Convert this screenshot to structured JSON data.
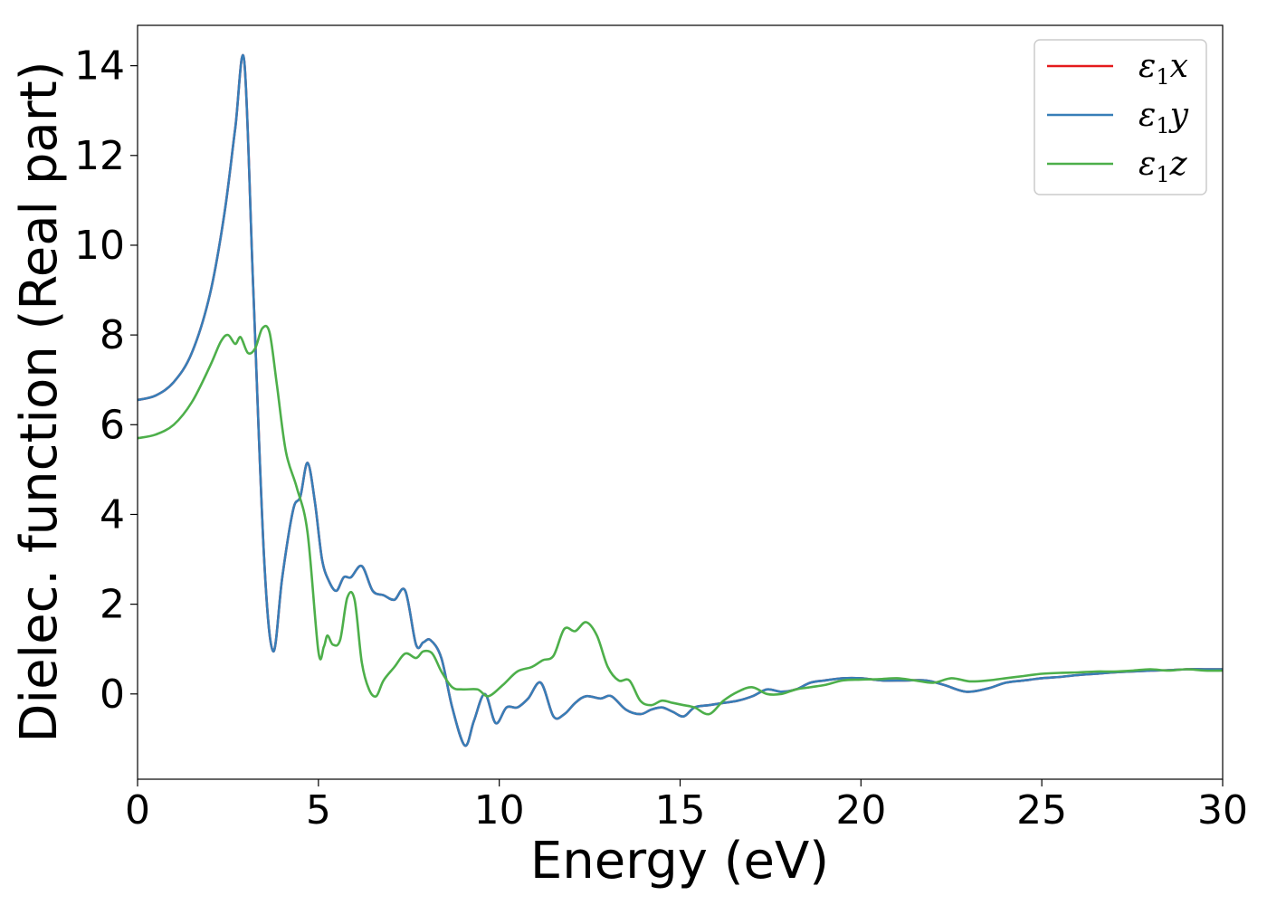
{
  "chart_data": {
    "type": "line",
    "title": "",
    "xlabel": "Energy (eV)",
    "ylabel": "Dielec. function (Real part)",
    "xlim": [
      0,
      30
    ],
    "ylim": [
      -1.9,
      14.9
    ],
    "xticks": [
      "0",
      "5",
      "10",
      "15",
      "20",
      "25",
      "30"
    ],
    "yticks": [
      "0",
      "2",
      "4",
      "6",
      "8",
      "10",
      "12",
      "14"
    ],
    "grid": false,
    "legend_position": "top-right",
    "series": [
      {
        "name": "x",
        "color": "#e41a1c",
        "x": [
          0,
          0.5,
          1,
          1.5,
          2,
          2.4,
          2.7,
          2.95,
          3.2,
          3.5,
          3.75,
          4,
          4.3,
          4.5,
          4.7,
          4.9,
          5.1,
          5.3,
          5.5,
          5.7,
          5.9,
          6.2,
          6.5,
          6.8,
          7.1,
          7.4,
          7.7,
          7.9,
          8.1,
          8.4,
          8.7,
          9.05,
          9.3,
          9.6,
          9.9,
          10.2,
          10.5,
          10.8,
          11.15,
          11.5,
          11.8,
          12.1,
          12.4,
          12.8,
          13.1,
          13.5,
          13.9,
          14.2,
          14.5,
          14.8,
          15.1,
          15.4,
          15.8,
          16.2,
          16.6,
          17,
          17.4,
          17.8,
          18.2,
          18.6,
          19,
          19.5,
          20,
          20.6,
          21.2,
          21.8,
          22.3,
          22.9,
          23.5,
          24,
          24.5,
          25,
          25.5,
          26,
          26.5,
          27,
          27.5,
          28,
          28.5,
          29,
          29.5,
          30
        ],
        "values": [
          6.55,
          6.65,
          6.95,
          7.6,
          8.9,
          10.7,
          12.6,
          14.1,
          9.0,
          3.0,
          0.95,
          2.6,
          4.1,
          4.4,
          5.15,
          4.3,
          3.0,
          2.5,
          2.3,
          2.6,
          2.6,
          2.85,
          2.3,
          2.2,
          2.1,
          2.3,
          1.1,
          1.15,
          1.2,
          0.8,
          -0.3,
          -1.15,
          -0.6,
          0.0,
          -0.65,
          -0.3,
          -0.3,
          -0.1,
          0.25,
          -0.5,
          -0.45,
          -0.2,
          -0.05,
          -0.1,
          -0.05,
          -0.35,
          -0.45,
          -0.35,
          -0.3,
          -0.4,
          -0.5,
          -0.3,
          -0.25,
          -0.2,
          -0.15,
          -0.05,
          0.1,
          0.05,
          0.1,
          0.25,
          0.3,
          0.35,
          0.35,
          0.3,
          0.3,
          0.3,
          0.2,
          0.05,
          0.12,
          0.25,
          0.3,
          0.35,
          0.38,
          0.42,
          0.45,
          0.48,
          0.5,
          0.52,
          0.53,
          0.55,
          0.55,
          0.55
        ]
      },
      {
        "name": "y",
        "color": "#377eb8",
        "x": [
          0,
          0.5,
          1,
          1.5,
          2,
          2.4,
          2.7,
          2.95,
          3.2,
          3.5,
          3.75,
          4,
          4.3,
          4.5,
          4.7,
          4.9,
          5.1,
          5.3,
          5.5,
          5.7,
          5.9,
          6.2,
          6.5,
          6.8,
          7.1,
          7.4,
          7.7,
          7.9,
          8.1,
          8.4,
          8.7,
          9.05,
          9.3,
          9.6,
          9.9,
          10.2,
          10.5,
          10.8,
          11.15,
          11.5,
          11.8,
          12.1,
          12.4,
          12.8,
          13.1,
          13.5,
          13.9,
          14.2,
          14.5,
          14.8,
          15.1,
          15.4,
          15.8,
          16.2,
          16.6,
          17,
          17.4,
          17.8,
          18.2,
          18.6,
          19,
          19.5,
          20,
          20.6,
          21.2,
          21.8,
          22.3,
          22.9,
          23.5,
          24,
          24.5,
          25,
          25.5,
          26,
          26.5,
          27,
          27.5,
          28,
          28.5,
          29,
          29.5,
          30
        ],
        "values": [
          6.55,
          6.65,
          6.95,
          7.6,
          8.9,
          10.7,
          12.6,
          14.1,
          9.0,
          3.0,
          0.95,
          2.6,
          4.1,
          4.4,
          5.15,
          4.3,
          3.0,
          2.5,
          2.3,
          2.6,
          2.6,
          2.85,
          2.3,
          2.2,
          2.1,
          2.3,
          1.1,
          1.15,
          1.2,
          0.8,
          -0.3,
          -1.15,
          -0.6,
          0.0,
          -0.65,
          -0.3,
          -0.3,
          -0.1,
          0.25,
          -0.5,
          -0.45,
          -0.2,
          -0.05,
          -0.1,
          -0.05,
          -0.35,
          -0.45,
          -0.35,
          -0.3,
          -0.4,
          -0.5,
          -0.3,
          -0.25,
          -0.2,
          -0.15,
          -0.05,
          0.1,
          0.05,
          0.1,
          0.25,
          0.3,
          0.35,
          0.35,
          0.3,
          0.3,
          0.3,
          0.2,
          0.05,
          0.12,
          0.25,
          0.3,
          0.35,
          0.38,
          0.42,
          0.45,
          0.48,
          0.5,
          0.52,
          0.53,
          0.55,
          0.55,
          0.55
        ]
      },
      {
        "name": "z",
        "color": "#4daf4a",
        "x": [
          0,
          0.5,
          1,
          1.5,
          2,
          2.3,
          2.5,
          2.7,
          2.85,
          3.05,
          3.25,
          3.45,
          3.65,
          3.85,
          4.1,
          4.4,
          4.7,
          5.0,
          5.15,
          5.25,
          5.4,
          5.6,
          5.8,
          6.0,
          6.2,
          6.4,
          6.6,
          6.8,
          7.1,
          7.4,
          7.7,
          7.9,
          8.15,
          8.4,
          8.7,
          9.0,
          9.4,
          9.7,
          10.1,
          10.5,
          10.9,
          11.2,
          11.5,
          11.8,
          12.1,
          12.4,
          12.7,
          13.0,
          13.3,
          13.6,
          13.9,
          14.2,
          14.5,
          14.8,
          15.1,
          15.4,
          15.8,
          16.2,
          16.6,
          17,
          17.4,
          17.8,
          18.2,
          18.6,
          19,
          19.5,
          20,
          20.5,
          21,
          21.5,
          22,
          22.5,
          23,
          23.5,
          24,
          24.5,
          25,
          25.5,
          26,
          26.5,
          27,
          27.5,
          28,
          28.5,
          29,
          29.5,
          30
        ],
        "values": [
          5.7,
          5.78,
          6.0,
          6.5,
          7.3,
          7.85,
          8.0,
          7.8,
          7.95,
          7.6,
          7.7,
          8.15,
          8.05,
          6.9,
          5.4,
          4.6,
          3.6,
          0.95,
          1.05,
          1.3,
          1.1,
          1.2,
          2.15,
          2.1,
          0.7,
          0.1,
          -0.05,
          0.3,
          0.6,
          0.9,
          0.8,
          0.95,
          0.9,
          0.5,
          0.15,
          0.1,
          0.1,
          -0.05,
          0.2,
          0.5,
          0.6,
          0.75,
          0.85,
          1.45,
          1.4,
          1.6,
          1.3,
          0.6,
          0.3,
          0.3,
          -0.15,
          -0.25,
          -0.15,
          -0.2,
          -0.25,
          -0.3,
          -0.45,
          -0.15,
          0.05,
          0.15,
          0.0,
          0.0,
          0.1,
          0.15,
          0.2,
          0.3,
          0.32,
          0.33,
          0.35,
          0.3,
          0.25,
          0.35,
          0.28,
          0.3,
          0.35,
          0.4,
          0.45,
          0.47,
          0.48,
          0.5,
          0.5,
          0.52,
          0.55,
          0.52,
          0.55,
          0.52,
          0.52
        ]
      }
    ]
  }
}
